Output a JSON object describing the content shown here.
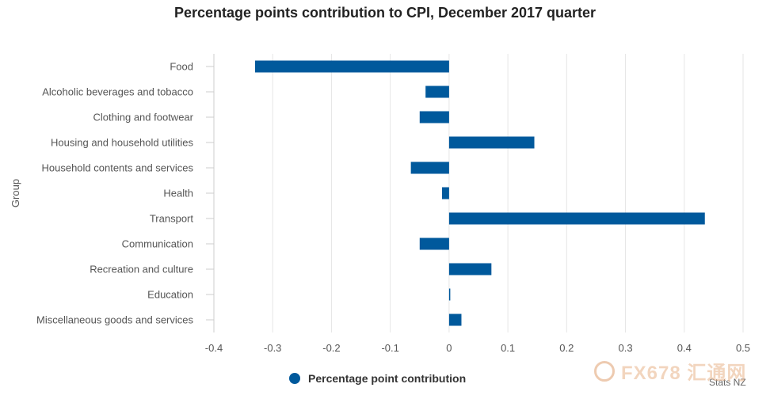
{
  "chart_data": {
    "type": "bar",
    "orientation": "horizontal",
    "title": "Percentage points contribution to CPI, December 2017 quarter",
    "xlabel": "",
    "ylabel": "Group",
    "categories": [
      "Food",
      "Alcoholic beverages and tobacco",
      "Clothing and footwear",
      "Housing and household utilities",
      "Household contents and services",
      "Health",
      "Transport",
      "Communication",
      "Recreation and culture",
      "Education",
      "Miscellaneous goods and services"
    ],
    "series": [
      {
        "name": "Percentage point contribution",
        "color": "#00599c",
        "values": [
          -0.33,
          -0.04,
          -0.05,
          0.145,
          -0.065,
          -0.012,
          0.435,
          -0.05,
          0.072,
          0.002,
          0.021
        ]
      }
    ],
    "xlim": [
      -0.4,
      0.5
    ],
    "xticks": [
      "-0.4",
      "-0.3",
      "-0.2",
      "-0.1",
      "0",
      "0.1",
      "0.2",
      "0.3",
      "0.4",
      "0.5"
    ],
    "grid": true,
    "legend_placement": "bottom-center"
  },
  "credits": "Stats NZ",
  "watermark": "FX678 汇通网"
}
